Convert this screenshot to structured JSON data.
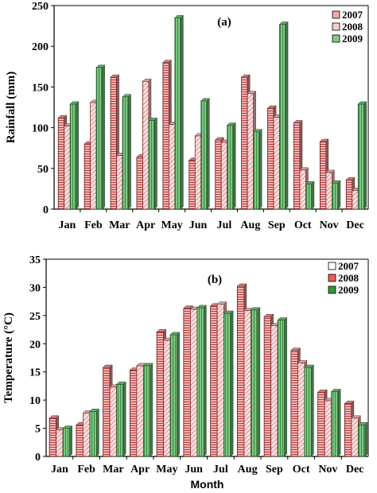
{
  "chart_data": [
    {
      "type": "bar",
      "title": "(a)",
      "xlabel": "",
      "ylabel": "Rainfall (mm)",
      "ylim": [
        0,
        250
      ],
      "yticks": [
        0,
        50,
        100,
        150,
        200,
        250
      ],
      "grid": false,
      "legend_position": "top-right",
      "categories": [
        "Jan",
        "Feb",
        "Mar",
        "Apr",
        "May",
        "Jun",
        "Jul",
        "Aug",
        "Sep",
        "Oct",
        "Nov",
        "Dec"
      ],
      "series": [
        {
          "name": "2007",
          "color": "#f4a6a6",
          "values": [
            112,
            80,
            162,
            64,
            180,
            60,
            85,
            162,
            124,
            106,
            83,
            36
          ]
        },
        {
          "name": "2008",
          "color": "#f8d0d0",
          "values": [
            102,
            131,
            66,
            157,
            104,
            90,
            82,
            142,
            113,
            48,
            45,
            23
          ]
        },
        {
          "name": "2009",
          "color": "#86c98a",
          "values": [
            129,
            174,
            138,
            109,
            235,
            133,
            103,
            95,
            227,
            31,
            32,
            129
          ]
        }
      ]
    },
    {
      "type": "bar",
      "title": "(b)",
      "xlabel": "Month",
      "ylabel": "Temperature (°C)",
      "ylim": [
        0,
        35
      ],
      "yticks": [
        0,
        5,
        10,
        15,
        20,
        25,
        30,
        35
      ],
      "grid": false,
      "legend_position": "top-right",
      "categories": [
        "Jan",
        "Feb",
        "Mar",
        "Apr",
        "May",
        "Jun",
        "Jul",
        "Aug",
        "Sep",
        "Oct",
        "Nov",
        "Dec"
      ],
      "series": [
        {
          "name": "2007",
          "color": "#f4a6a6",
          "values": [
            6.8,
            5.6,
            15.8,
            15.3,
            22.1,
            26.3,
            26.7,
            30.2,
            24.8,
            18.8,
            11.4,
            9.4
          ]
        },
        {
          "name": "2008",
          "color": "#f8d0d0",
          "values": [
            4.7,
            7.7,
            12.3,
            16.1,
            20.6,
            26.1,
            27.0,
            25.9,
            23.2,
            16.6,
            9.9,
            6.8
          ]
        },
        {
          "name": "2009",
          "color": "#86c98a",
          "values": [
            5.0,
            8.0,
            12.8,
            16.1,
            21.6,
            26.4,
            25.4,
            26.0,
            24.2,
            15.8,
            11.5,
            5.6
          ]
        }
      ]
    }
  ]
}
